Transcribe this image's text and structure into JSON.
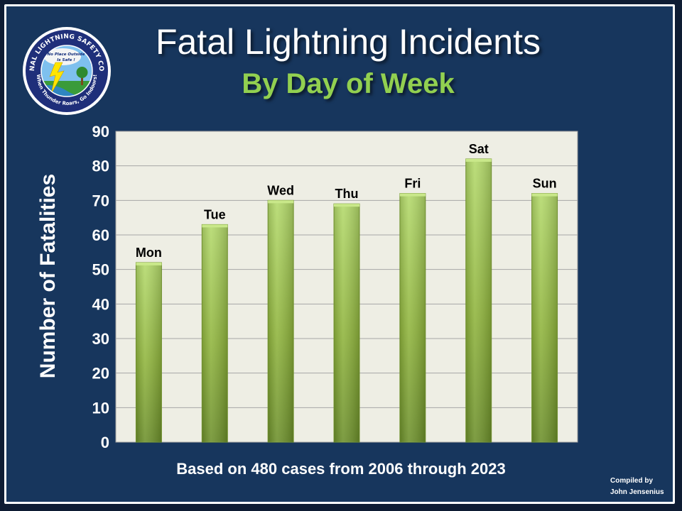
{
  "header": {
    "title": "Fatal Lightning Incidents",
    "subtitle": "By Day of Week"
  },
  "logo": {
    "ring_top_text": "NATIONAL LIGHTNING SAFETY COUNCIL",
    "ring_bottom_text": "When Thunder Roars, Go Indoors!",
    "cloud_text_line1": "No Place Outside",
    "cloud_text_line2": "Is Safe !"
  },
  "footnote": "Based on 480 cases from 2006 through 2023",
  "credit": {
    "line1": "Compiled by",
    "line2": "John Jensenius"
  },
  "colors": {
    "background": "#17365d",
    "plot_area": "#eeeee4",
    "bar": "#8fb43c",
    "subtitle": "#92d050"
  },
  "chart_data": {
    "type": "bar",
    "categories": [
      "Mon",
      "Tue",
      "Wed",
      "Thu",
      "Fri",
      "Sat",
      "Sun"
    ],
    "values": [
      52,
      63,
      70,
      69,
      72,
      82,
      72
    ],
    "ylabel": "Number of Fatalities",
    "xlabel": "",
    "ylim": [
      0,
      90
    ],
    "yticks": [
      0,
      10,
      20,
      30,
      40,
      50,
      60,
      70,
      80,
      90
    ],
    "grid": true,
    "legend": "none",
    "data_labels": "category names above bars"
  }
}
